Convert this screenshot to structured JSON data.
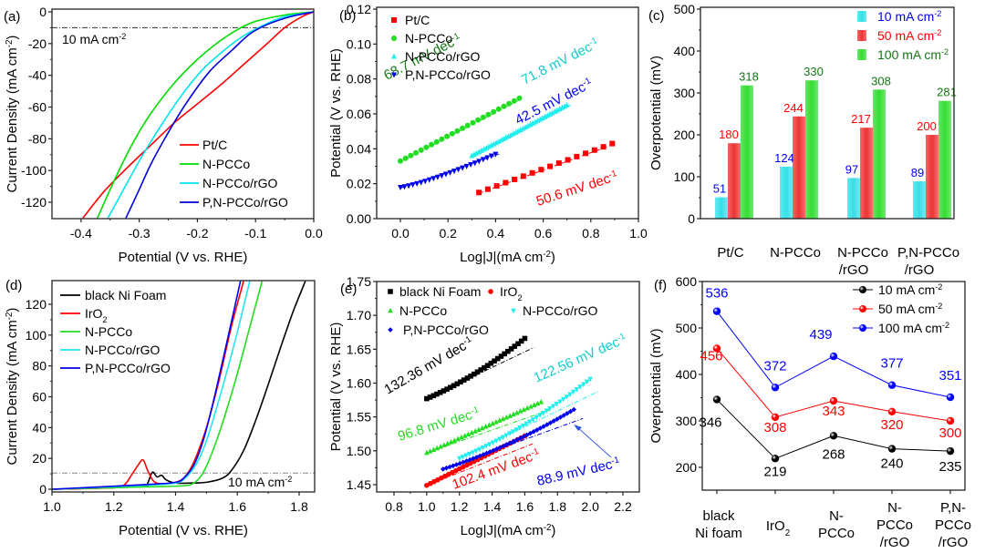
{
  "chart_data": [
    {
      "id": "a",
      "panel_label": "(a)",
      "type": "line",
      "title": "",
      "xlabel": "Potential (V vs. RHE)",
      "ylabel": "Current Density (mA cm⁻²)",
      "xlim": [
        -0.45,
        0.0
      ],
      "ylim": [
        -130,
        2
      ],
      "xticks": [
        -0.4,
        -0.3,
        -0.2,
        -0.1,
        0.0
      ],
      "xtick_labels": [
        "-0.4",
        "-0.3",
        "-0.2",
        "-0.1",
        "0.0"
      ],
      "yticks": [
        0,
        -20,
        -40,
        -60,
        -80,
        -100,
        -120
      ],
      "ytick_labels": [
        "0",
        "-20",
        "-40",
        "-60",
        "-80",
        "-100",
        "-120"
      ],
      "reference_line": {
        "y": -10,
        "label": "10 mA cm⁻²"
      },
      "legend_position": "bottom-right",
      "series": [
        {
          "name": "Pt/C",
          "color": "#ff0000",
          "x": [
            0.0,
            -0.02,
            -0.05,
            -0.08,
            -0.12,
            -0.16,
            -0.2,
            -0.24,
            -0.28,
            -0.32,
            -0.36,
            -0.397
          ],
          "y": [
            0,
            -3,
            -10,
            -20,
            -33,
            -46,
            -58,
            -70,
            -84,
            -98,
            -113,
            -130
          ]
        },
        {
          "name": "N-PCCo",
          "color": "#00dd00",
          "x": [
            0.0,
            -0.05,
            -0.1,
            -0.13,
            -0.16,
            -0.2,
            -0.24,
            -0.28,
            -0.31,
            -0.34,
            -0.372
          ],
          "y": [
            0,
            -2,
            -6,
            -11,
            -18,
            -30,
            -45,
            -64,
            -82,
            -104,
            -130
          ]
        },
        {
          "name": "N-PCCo/rGO",
          "color": "#00e5ee",
          "x": [
            0.0,
            -0.05,
            -0.09,
            -0.12,
            -0.15,
            -0.19,
            -0.23,
            -0.27,
            -0.3,
            -0.33,
            -0.354
          ],
          "y": [
            0,
            -3,
            -9,
            -15,
            -23,
            -36,
            -54,
            -76,
            -94,
            -114,
            -130
          ]
        },
        {
          "name": "P,N-PCCo/rGO",
          "color": "#0000dd",
          "x": [
            0.0,
            -0.04,
            -0.08,
            -0.11,
            -0.14,
            -0.18,
            -0.22,
            -0.25,
            -0.28,
            -0.3,
            -0.323
          ],
          "y": [
            0,
            -3,
            -8,
            -14,
            -24,
            -38,
            -58,
            -76,
            -96,
            -112,
            -130
          ]
        }
      ]
    },
    {
      "id": "b",
      "panel_label": "(b)",
      "type": "scatter",
      "title": "",
      "xlabel": "Log|J|(mA cm⁻²)",
      "ylabel": "Potential (V vs. RHE)",
      "xlim": [
        -0.1,
        1.0
      ],
      "ylim": [
        0.0,
        0.12
      ],
      "xticks": [
        0.0,
        0.2,
        0.4,
        0.6,
        0.8,
        1.0
      ],
      "xtick_labels": [
        "0.0",
        "0.2",
        "0.4",
        "0.6",
        "0.8",
        "1.0"
      ],
      "yticks": [
        0.0,
        0.02,
        0.04,
        0.06,
        0.08,
        0.1,
        0.12
      ],
      "ytick_labels": [
        "0.00",
        "0.02",
        "0.04",
        "0.06",
        "0.08",
        "0.10",
        "0.12"
      ],
      "legend_position": "top-left",
      "series": [
        {
          "name": "Pt/C",
          "color": "#ff0000",
          "marker": "square",
          "x_range": [
            0.33,
            0.89
          ],
          "y_range": [
            0.015,
            0.043
          ],
          "n": 16,
          "slope_label": "50.6 mV dec⁻¹"
        },
        {
          "name": "N-PCCo",
          "color": "#22dd22",
          "marker": "circle",
          "x_range": [
            0.0,
            0.5
          ],
          "y_range": [
            0.033,
            0.069
          ],
          "n": 24,
          "slope_label": "68.7 mV dec⁻¹",
          "label_color": "#117711"
        },
        {
          "name": "N-PCCo/rGO",
          "color": "#22eeee",
          "marker": "triangle-up",
          "x_range": [
            0.3,
            0.7
          ],
          "y_range": [
            0.036,
            0.065
          ],
          "n": 40,
          "slope_label": "71.8 mV dec⁻¹",
          "label_color": "#11cccc"
        },
        {
          "name": "P,N-PCCo/rGO",
          "color": "#0000ee",
          "marker": "triangle-down",
          "x_range": [
            0.0,
            0.4
          ],
          "y_range": [
            0.018,
            0.037
          ],
          "n": 24,
          "slope_label": "42.5 mV dec⁻¹",
          "label_color": "#0000ee"
        }
      ]
    },
    {
      "id": "c",
      "panel_label": "(c)",
      "type": "bar",
      "title": "",
      "xlabel": "",
      "ylabel": "Overpotential (mV)",
      "ylim": [
        0,
        500
      ],
      "yticks": [
        0,
        100,
        200,
        300,
        400,
        500
      ],
      "ytick_labels": [
        "0",
        "100",
        "200",
        "300",
        "400",
        "500"
      ],
      "categories": [
        [
          "Pt/C"
        ],
        [
          "N-PCCo"
        ],
        [
          "N-PCCo",
          "/rGO"
        ],
        [
          "P,N-PCCo",
          "/rGO"
        ]
      ],
      "legend_position": "top-right",
      "series": [
        {
          "name": "10 mA cm⁻²",
          "color": "#33e0e8",
          "label_color": "#0000ee",
          "values": [
            51,
            124,
            97,
            89
          ]
        },
        {
          "name": "50 mA cm⁻²",
          "color": "#ee3333",
          "label_color": "#ff0000",
          "values": [
            180,
            244,
            217,
            200
          ]
        },
        {
          "name": "100 mA cm⁻²",
          "color": "#33dd33",
          "label_color": "#117711",
          "values": [
            318,
            330,
            308,
            281
          ]
        }
      ]
    },
    {
      "id": "d",
      "panel_label": "(d)",
      "type": "line",
      "title": "",
      "xlabel": "Potential (V vs. RHE)",
      "ylabel": "Current Density (mA cm⁻²)",
      "xlim": [
        1.0,
        1.85
      ],
      "ylim": [
        -2,
        135
      ],
      "xticks": [
        1.0,
        1.2,
        1.4,
        1.6,
        1.8
      ],
      "xtick_labels": [
        "1.0",
        "1.2",
        "1.4",
        "1.6",
        "1.8"
      ],
      "yticks": [
        0,
        20,
        40,
        60,
        80,
        100,
        120
      ],
      "ytick_labels": [
        "0",
        "20",
        "40",
        "60",
        "80",
        "100",
        "120"
      ],
      "reference_line": {
        "y": 10.5,
        "label": "10 mA cm⁻²"
      },
      "legend_position": "top-left",
      "series": [
        {
          "name": "black Ni Foam",
          "color": "#000000",
          "x": [
            1.0,
            1.2,
            1.3,
            1.31,
            1.325,
            1.34,
            1.355,
            1.37,
            1.4,
            1.45,
            1.5,
            1.55,
            1.58,
            1.62,
            1.66,
            1.7,
            1.74,
            1.78,
            1.81,
            1.82
          ],
          "y": [
            0,
            1,
            2,
            4,
            11,
            8,
            9,
            6,
            4,
            4,
            4.5,
            7,
            12,
            25,
            45,
            68,
            92,
            115,
            130,
            135
          ]
        },
        {
          "name": "IrO₂",
          "color": "#ff0000",
          "x": [
            1.0,
            1.2,
            1.235,
            1.26,
            1.28,
            1.295,
            1.31,
            1.33,
            1.36,
            1.4,
            1.43,
            1.46,
            1.5,
            1.54,
            1.58,
            1.62
          ],
          "y": [
            0,
            1,
            3,
            10,
            16,
            19,
            12,
            5,
            3.5,
            4.5,
            8,
            18,
            40,
            70,
            105,
            135
          ]
        },
        {
          "name": "N-PCCo",
          "color": "#22dd22",
          "x": [
            1.0,
            1.3,
            1.4,
            1.45,
            1.48,
            1.5,
            1.53,
            1.56,
            1.6,
            1.64,
            1.68
          ],
          "y": [
            0,
            1.5,
            2,
            3,
            8,
            15,
            30,
            48,
            75,
            105,
            135
          ]
        },
        {
          "name": "N-PCCo/rGO",
          "color": "#22e5ee",
          "x": [
            1.0,
            1.3,
            1.4,
            1.43,
            1.46,
            1.49,
            1.52,
            1.56,
            1.6,
            1.64
          ],
          "y": [
            0,
            2.5,
            4,
            7,
            14,
            26,
            44,
            72,
            102,
            135
          ]
        },
        {
          "name": "P,N-PCCo/rGO",
          "color": "#0000ee",
          "x": [
            1.0,
            1.3,
            1.4,
            1.43,
            1.46,
            1.49,
            1.52,
            1.56,
            1.61
          ],
          "y": [
            0,
            3,
            4.5,
            8,
            16,
            32,
            55,
            90,
            135
          ]
        }
      ]
    },
    {
      "id": "e",
      "panel_label": "(e)",
      "type": "scatter",
      "title": "",
      "xlabel": "Log|J|(mA cm⁻²)",
      "ylabel": "Potential (V vs. RHE)",
      "xlim": [
        0.7,
        2.3
      ],
      "ylim": [
        1.44,
        1.75
      ],
      "xticks": [
        0.8,
        1.0,
        1.2,
        1.4,
        1.6,
        1.8,
        2.0,
        2.2
      ],
      "xtick_labels": [
        "0.8",
        "1.0",
        "1.2",
        "1.4",
        "1.6",
        "1.8",
        "2.0",
        "2.2"
      ],
      "yticks": [
        1.45,
        1.5,
        1.55,
        1.6,
        1.65,
        1.7,
        1.75
      ],
      "ytick_labels": [
        "1.45",
        "1.50",
        "1.55",
        "1.60",
        "1.65",
        "1.70",
        "1.75"
      ],
      "legend_position": "top",
      "series": [
        {
          "name": "black Ni Foam",
          "color": "#000000",
          "marker": "square",
          "x_range": [
            1.0,
            1.6
          ],
          "y_range": [
            1.577,
            1.666
          ],
          "n": 30,
          "slope_label": "132.36 mV dec⁻¹",
          "label_color": "#000000"
        },
        {
          "name": "IrO₂",
          "color": "#ff0000",
          "marker": "circle",
          "x_range": [
            1.0,
            1.6
          ],
          "y_range": [
            1.449,
            1.522
          ],
          "n": 28,
          "slope_label": "102.4 mV dec⁻¹",
          "label_color": "#ff0000"
        },
        {
          "name": "N-PCCo",
          "color": "#22dd22",
          "marker": "triangle-up",
          "x_range": [
            1.0,
            1.7
          ],
          "y_range": [
            1.497,
            1.572
          ],
          "n": 34,
          "slope_label": "96.8 mV dec⁻¹",
          "label_color": "#22dd22"
        },
        {
          "name": "N-PCCo/rGO",
          "color": "#22eeee",
          "marker": "triangle-down",
          "x_range": [
            1.2,
            2.0
          ],
          "y_range": [
            1.489,
            1.606
          ],
          "n": 40,
          "slope_label": "122.56 mV dec⁻¹",
          "label_color": "#11cccc"
        },
        {
          "name": "P,N-PCCo/rGO",
          "color": "#0000ee",
          "marker": "diamond",
          "x_range": [
            1.1,
            1.9
          ],
          "y_range": [
            1.473,
            1.561
          ],
          "n": 40,
          "slope_label": "88.9 mV dec⁻¹",
          "label_color": "#0000ee"
        }
      ]
    },
    {
      "id": "f",
      "panel_label": "(f)",
      "type": "line",
      "title": "",
      "xlabel": "",
      "ylabel": "Overpotential (mV)",
      "ylim": [
        150,
        600
      ],
      "yticks": [
        200,
        300,
        400,
        500,
        600
      ],
      "ytick_labels": [
        "200",
        "300",
        "400",
        "500",
        "600"
      ],
      "categories": [
        [
          "black",
          "Ni foam"
        ],
        [
          "IrO₂"
        ],
        [
          "N-",
          "PCCo"
        ],
        [
          "N-",
          "PCCo",
          "/rGO"
        ],
        [
          "P,N-",
          "PCCo",
          "/rGO"
        ]
      ],
      "legend_position": "top-right",
      "series": [
        {
          "name": "10 mA cm⁻²",
          "color": "#000000",
          "label_color": "#000000",
          "values": [
            346,
            219,
            268,
            240,
            235
          ]
        },
        {
          "name": "50 mA cm⁻²",
          "color": "#ff0000",
          "label_color": "#ff0000",
          "values": [
            456,
            308,
            343,
            320,
            300
          ]
        },
        {
          "name": "100 mA cm⁻²",
          "color": "#0000ff",
          "label_color": "#0000ff",
          "values": [
            536,
            372,
            439,
            377,
            351
          ]
        }
      ]
    }
  ]
}
